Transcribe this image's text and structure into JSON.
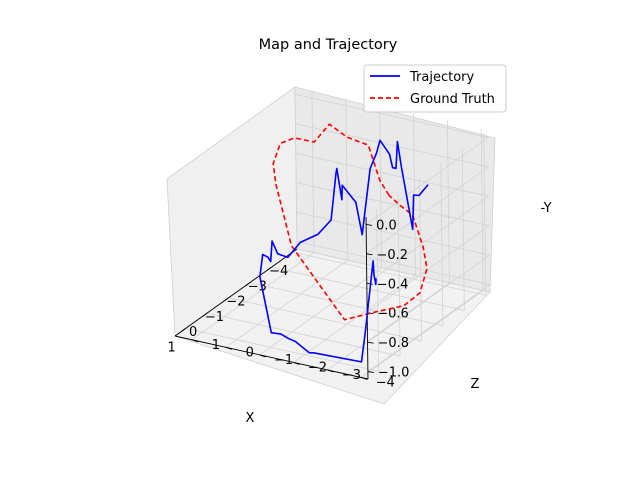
{
  "chart_data": {
    "type": "line",
    "projection": "3d",
    "title": "Map and Trajectory",
    "xlabel": "X",
    "ylabel": "Z",
    "zlabel": "-Y",
    "xticks": [
      "−4",
      "−3",
      "−2",
      "−1",
      "0",
      "1"
    ],
    "yticks": [
      "−4",
      "−3",
      "−2",
      "−1",
      "0",
      "1"
    ],
    "zticks": [
      "−1.0",
      "−0.8",
      "−0.6",
      "−0.4",
      "−0.2",
      "0.0"
    ],
    "xtick_values": [
      -4,
      -3,
      -2,
      -1,
      0,
      1
    ],
    "ytick_values": [
      -4,
      -3,
      -2,
      -1,
      0,
      1
    ],
    "ztick_values": [
      -1.0,
      -0.8,
      -0.6,
      -0.4,
      -0.2,
      0.0
    ],
    "xlim": [
      -4.2,
      1.5
    ],
    "ylim": [
      -4.2,
      1.5
    ],
    "zlim": [
      -1.05,
      0.05
    ],
    "grid": true,
    "legend_position": "upper right",
    "series": [
      {
        "name": "Trajectory",
        "color": "#0000ff",
        "linestyle": "solid",
        "points": [
          [
            -3.96,
            -2.56,
            -0.38
          ],
          [
            -3.83,
            -2.37,
            -0.45
          ],
          [
            -3.72,
            -2.28,
            -0.44
          ],
          [
            -3.61,
            -2.31,
            -0.66
          ],
          [
            -3.49,
            -2.08,
            -0.24
          ],
          [
            -3.42,
            -2.01,
            -0.06
          ],
          [
            -3.39,
            -1.98,
            -0.24
          ],
          [
            -3.31,
            -1.93,
            -0.23
          ],
          [
            -3.21,
            -1.91,
            -0.13
          ],
          [
            -3.07,
            -1.72,
            -0.03
          ],
          [
            -2.98,
            -1.67,
            -0.11
          ],
          [
            -2.86,
            -1.55,
            -0.21
          ],
          [
            -2.71,
            -1.39,
            -0.65
          ],
          [
            -2.57,
            -1.3,
            -0.42
          ],
          [
            -2.39,
            -1.02,
            -0.3
          ],
          [
            -2.32,
            -1.05,
            -0.39
          ],
          [
            -2.21,
            -0.98,
            -0.17
          ],
          [
            -2.15,
            -0.99,
            -0.2
          ],
          [
            -1.7,
            -1.12,
            -0.46
          ],
          [
            -1.42,
            -0.9,
            -0.54
          ],
          [
            -1.12,
            -0.57,
            -0.58
          ],
          [
            -0.89,
            -0.34,
            -0.67
          ],
          [
            -0.52,
            -0.28,
            -0.61
          ],
          [
            -0.36,
            -0.22,
            -0.51
          ],
          [
            -0.05,
            -0.37,
            -0.61
          ],
          [
            -0.02,
            -0.31,
            -0.58
          ],
          [
            0.05,
            -0.2,
            -0.56
          ],
          [
            0.16,
            -0.18,
            -0.7
          ],
          [
            0.34,
            -0.61,
            -1.04
          ],
          [
            0.3,
            -0.87,
            -1.04
          ],
          [
            0.52,
            -1.25,
            -1.03
          ],
          [
            0.73,
            -1.57,
            -1.01
          ],
          [
            0.92,
            -2.1,
            -1.04
          ],
          [
            1.02,
            -2.29,
            -1.02
          ],
          [
            1.01,
            -3.7,
            -1.01
          ],
          [
            1.11,
            -3.88,
            -0.8
          ],
          [
            1.12,
            -4.15,
            -0.29
          ],
          [
            1.2,
            -4.22,
            -0.37
          ],
          [
            1.24,
            -4.3,
            -0.43
          ],
          [
            1.29,
            -4.34,
            -0.38
          ]
        ]
      },
      {
        "name": "Ground Truth",
        "color": "#ff0000",
        "linestyle": "dashed",
        "points": [
          [
            -3.8,
            -1.5,
            -0.49
          ],
          [
            -3.7,
            -1.3,
            -0.39
          ],
          [
            -3.65,
            -1.0,
            -0.16
          ],
          [
            -3.3,
            -0.6,
            -0.09
          ],
          [
            -2.8,
            -0.4,
            0.04
          ],
          [
            -2.4,
            -0.2,
            -0.05
          ],
          [
            -1.8,
            0.0,
            0.03
          ],
          [
            -1.3,
            0.1,
            0.04
          ],
          [
            -0.8,
            0.0,
            -0.04
          ],
          [
            -0.6,
            -0.2,
            -0.15
          ],
          [
            -0.5,
            -0.7,
            -0.53
          ],
          [
            -0.7,
            -1.2,
            -0.73
          ],
          [
            -1.2,
            -1.8,
            -1.05
          ],
          [
            -2.0,
            -2.3,
            -1.05
          ],
          [
            -2.7,
            -2.6,
            -1.07
          ],
          [
            -3.3,
            -2.7,
            -1.04
          ],
          [
            -3.8,
            -2.6,
            -0.93
          ],
          [
            -4.1,
            -2.3,
            -0.83
          ],
          [
            -4.1,
            -2.0,
            -0.63
          ],
          [
            -4.0,
            -1.7,
            -0.57
          ],
          [
            -3.8,
            -1.5,
            -0.49
          ]
        ]
      }
    ]
  }
}
